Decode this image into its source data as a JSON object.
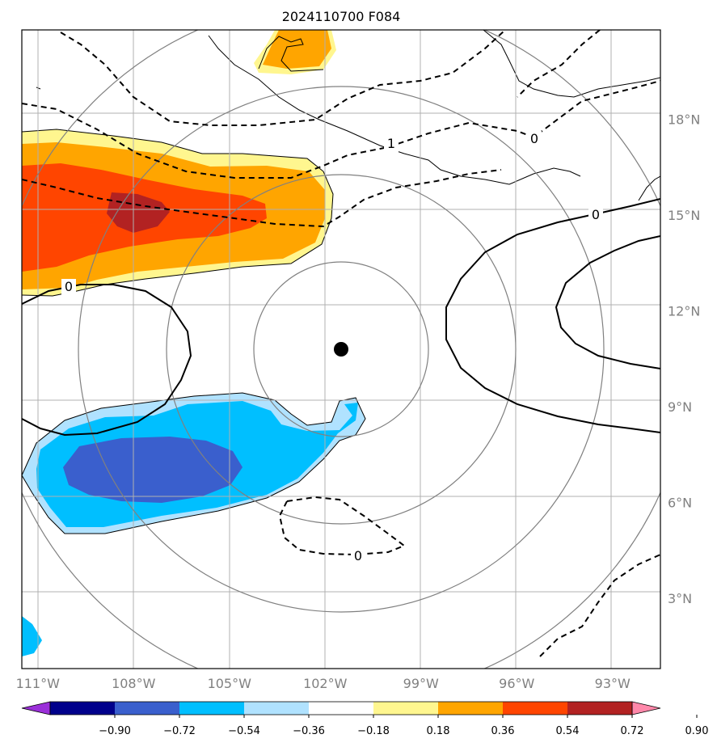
{
  "chart_data": {
    "type": "contour-map",
    "title": "2024110700 F084",
    "x_ticks": [
      {
        "lon": -111,
        "label": "111°W"
      },
      {
        "lon": -108,
        "label": "108°W"
      },
      {
        "lon": -105,
        "label": "105°W"
      },
      {
        "lon": -102,
        "label": "102°W"
      },
      {
        "lon": -99,
        "label": "99°W"
      },
      {
        "lon": -96,
        "label": "96°W"
      },
      {
        "lon": -93,
        "label": "93°W"
      }
    ],
    "y_ticks": [
      {
        "lat": 18,
        "label": "18°N"
      },
      {
        "lat": 15,
        "label": "15°N"
      },
      {
        "lat": 12,
        "label": "12°N"
      },
      {
        "lat": 9,
        "label": "9°N"
      },
      {
        "lat": 6,
        "label": "6°N"
      },
      {
        "lat": 3,
        "label": "3°N"
      }
    ],
    "lon_range": [
      -111.5,
      -91.5
    ],
    "lat_range": [
      0.8,
      20.8
    ],
    "gridlines": true,
    "center": {
      "lon": -101.5,
      "lat": 10.6
    },
    "range_rings_deg": [
      2.75,
      5.5,
      8.25,
      11.0
    ],
    "contour_labels": [
      "1",
      "0",
      "0",
      "0",
      "0"
    ],
    "colorbar": {
      "boundaries": [
        "−0.90",
        "−0.72",
        "−0.54",
        "−0.36",
        "−0.18",
        "0.18",
        "0.36",
        "0.54",
        "0.72",
        "0.90"
      ],
      "colors": [
        "#9b30d9",
        "#00008b",
        "#3a5fcd",
        "#00bfff",
        "#b0e2ff",
        "#ffffff",
        "#fff68f",
        "#ffa500",
        "#ff4500",
        "#b22222",
        "#ff88aa"
      ],
      "extend": "both"
    }
  }
}
